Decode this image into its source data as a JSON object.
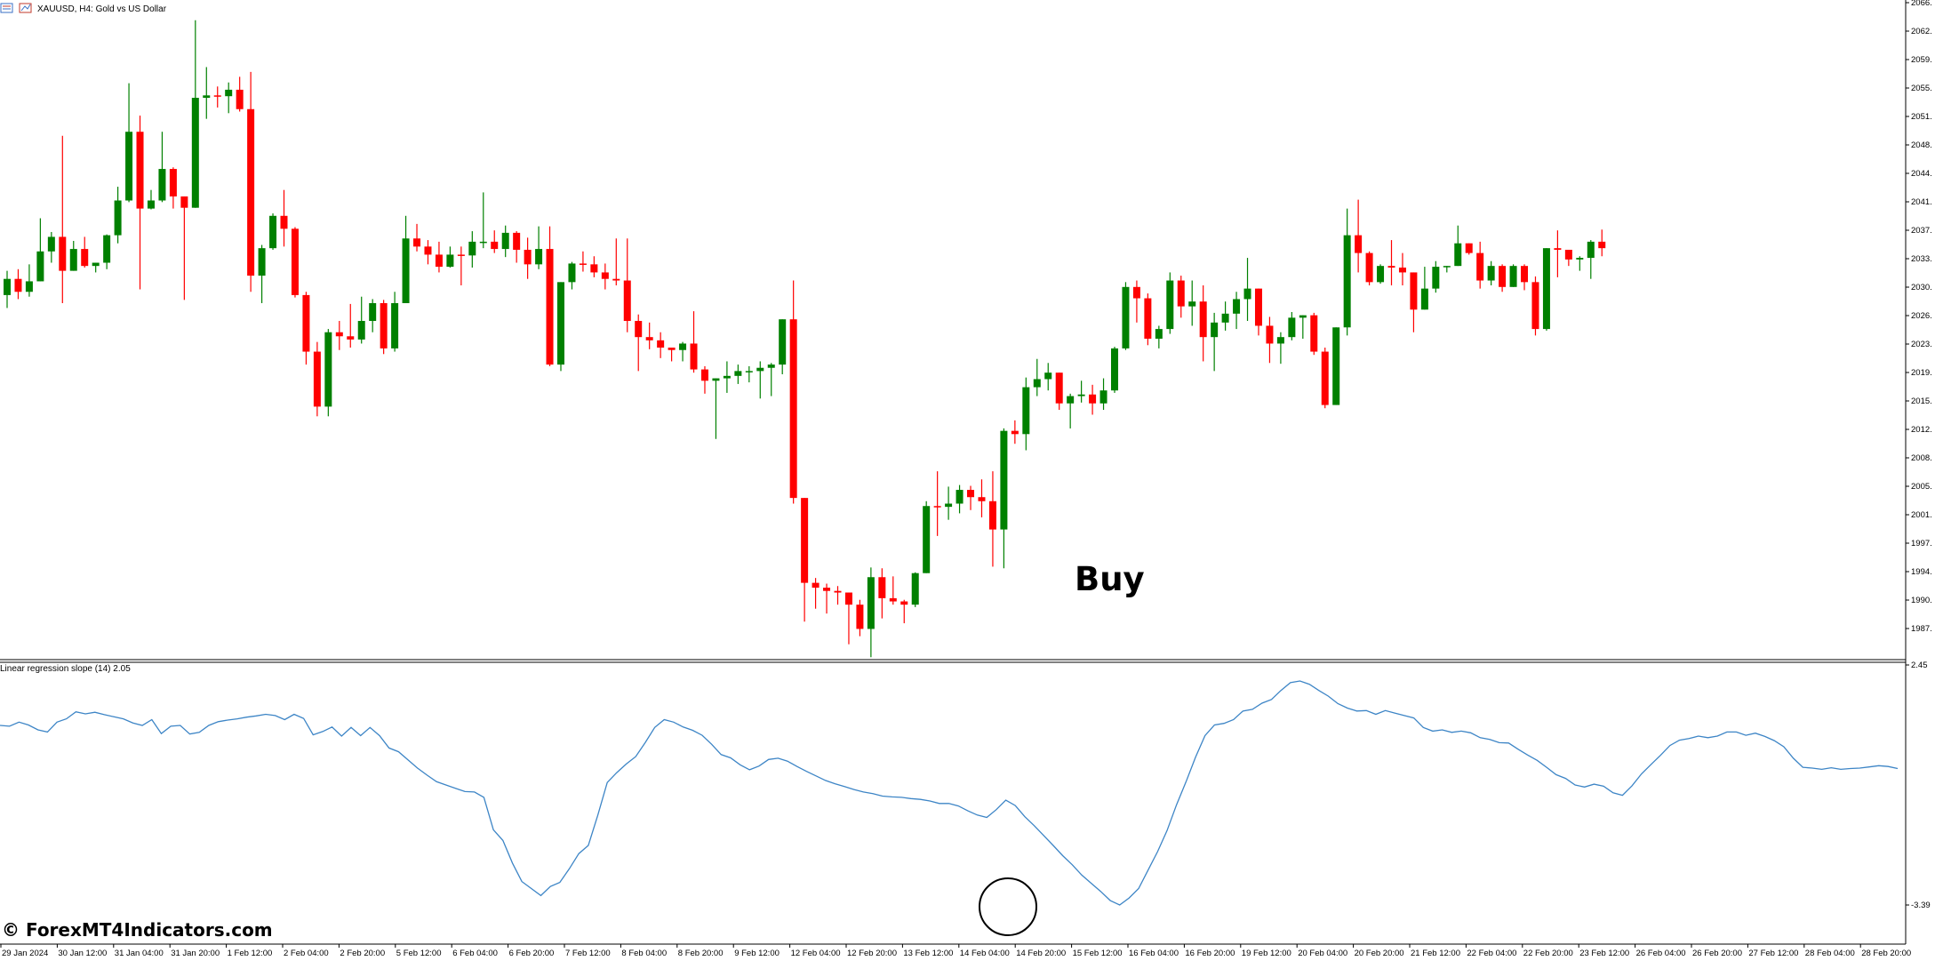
{
  "window": {
    "title": "XAUUSD, H4:  Gold vs US Dollar",
    "icons": [
      "chart-window-icon",
      "chart-settings-icon"
    ]
  },
  "indicator": {
    "title": "Linear regression slope (14) 2.05",
    "color": "#3d85c6"
  },
  "annotation": {
    "label": "Buy",
    "highlight": "circle on indicator minimum"
  },
  "watermark": "© ForexMT4Indicators.com",
  "colors": {
    "bull": "#008000",
    "bear": "#ff0000",
    "axis": "#000000",
    "background": "#ffffff"
  },
  "chart_data": [
    {
      "type": "candlestick",
      "title": "XAUUSD, H4:  Gold vs US Dollar",
      "ylim": [
        1984.7,
        2066.3
      ],
      "y_ticks": [
        "2066.",
        "2062.",
        "2059.",
        "2055.",
        "2051.",
        "2048.",
        "2044.",
        "2041.",
        "2037.",
        "2033.",
        "2030.",
        "2026.",
        "2023.",
        "2019.",
        "2015.",
        "2012.",
        "2008.",
        "2005.",
        "2001.",
        "1997.",
        "1994.",
        "1990.",
        "1987."
      ],
      "x_ticks": [
        "29 Jan 2024",
        "30 Jan 12:00",
        "31 Jan 04:00",
        "31 Jan 20:00",
        "1 Feb 12:00",
        "2 Feb 04:00",
        "2 Feb 20:00",
        "5 Feb 12:00",
        "6 Feb 04:00",
        "6 Feb 20:00",
        "7 Feb 12:00",
        "8 Feb 04:00",
        "8 Feb 20:00",
        "9 Feb 12:00",
        "12 Feb 04:00",
        "12 Feb 20:00",
        "13 Feb 12:00",
        "14 Feb 04:00",
        "14 Feb 20:00",
        "15 Feb 12:00",
        "16 Feb 04:00",
        "16 Feb 20:00",
        "19 Feb 12:00",
        "20 Feb 04:00",
        "20 Feb 20:00",
        "21 Feb 12:00",
        "22 Feb 04:00",
        "22 Feb 20:00",
        "23 Feb 12:00",
        "26 Feb 04:00",
        "26 Feb 20:00",
        "27 Feb 12:00",
        "28 Feb 04:00",
        "28 Feb 20:00"
      ],
      "candles": [
        [
          2029.8,
          2031.8,
          2028.2,
          2032.8
        ],
        [
          2031.8,
          2030.2,
          2029.3,
          2033.0
        ],
        [
          2030.2,
          2031.5,
          2029.6,
          2033.6
        ],
        [
          2031.5,
          2035.2,
          2031.5,
          2039.3
        ],
        [
          2035.2,
          2037.0,
          2033.8,
          2037.6
        ],
        [
          2037.0,
          2032.8,
          2028.8,
          2049.5
        ],
        [
          2032.8,
          2035.5,
          2032.8,
          2036.5
        ],
        [
          2035.5,
          2033.4,
          2033.2,
          2037.0
        ],
        [
          2033.4,
          2033.8,
          2032.6,
          2033.8
        ],
        [
          2033.8,
          2037.2,
          2033.0,
          2037.3
        ],
        [
          2037.2,
          2041.5,
          2036.2,
          2043.2
        ],
        [
          2041.5,
          2050.0,
          2041.3,
          2056.0
        ],
        [
          2050.0,
          2040.5,
          2030.5,
          2052.0
        ],
        [
          2040.5,
          2041.5,
          2040.4,
          2042.8
        ],
        [
          2041.5,
          2045.4,
          2041.3,
          2050.0
        ],
        [
          2045.4,
          2042.0,
          2040.5,
          2045.6
        ],
        [
          2042.0,
          2040.6,
          2029.2,
          2042.0
        ],
        [
          2040.6,
          2054.2,
          2040.6,
          2063.8
        ],
        [
          2054.2,
          2054.5,
          2051.6,
          2058.0
        ],
        [
          2054.5,
          2054.4,
          2053.0,
          2055.6
        ],
        [
          2054.4,
          2055.2,
          2052.3,
          2056.1
        ],
        [
          2055.2,
          2052.8,
          2052.5,
          2056.8
        ],
        [
          2052.8,
          2032.2,
          2030.2,
          2057.4
        ],
        [
          2032.2,
          2035.6,
          2028.8,
          2036.0
        ],
        [
          2035.6,
          2039.6,
          2035.4,
          2039.9
        ],
        [
          2039.6,
          2038.0,
          2035.8,
          2042.8
        ],
        [
          2038.0,
          2029.8,
          2029.5,
          2038.2
        ],
        [
          2029.8,
          2022.8,
          2021.2,
          2030.2
        ],
        [
          2022.8,
          2016.0,
          2014.8,
          2024.0
        ],
        [
          2016.0,
          2025.2,
          2014.8,
          2025.6
        ],
        [
          2025.2,
          2024.7,
          2023.0,
          2026.6
        ],
        [
          2024.7,
          2024.3,
          2023.3,
          2028.7
        ],
        [
          2024.3,
          2026.6,
          2023.8,
          2029.6
        ],
        [
          2026.6,
          2028.8,
          2025.2,
          2029.3
        ],
        [
          2028.8,
          2023.2,
          2022.5,
          2029.2
        ],
        [
          2023.2,
          2028.8,
          2022.8,
          2030.2
        ],
        [
          2028.8,
          2036.8,
          2028.8,
          2039.6
        ],
        [
          2036.8,
          2035.8,
          2035.2,
          2038.6
        ],
        [
          2035.8,
          2034.8,
          2033.6,
          2036.6
        ],
        [
          2034.8,
          2033.3,
          2032.6,
          2036.4
        ],
        [
          2033.3,
          2034.8,
          2033.2,
          2035.8
        ],
        [
          2034.8,
          2034.7,
          2031.0,
          2035.8
        ],
        [
          2034.7,
          2036.4,
          2033.2,
          2037.7
        ],
        [
          2036.4,
          2036.4,
          2035.6,
          2042.5
        ],
        [
          2036.4,
          2035.5,
          2035.0,
          2037.8
        ],
        [
          2035.5,
          2037.5,
          2034.5,
          2038.4
        ],
        [
          2037.5,
          2035.4,
          2033.8,
          2037.7
        ],
        [
          2035.4,
          2033.6,
          2031.8,
          2036.9
        ],
        [
          2033.6,
          2035.5,
          2033.0,
          2038.3
        ],
        [
          2035.5,
          2021.2,
          2021.0,
          2038.3
        ],
        [
          2021.2,
          2031.4,
          2020.4,
          2031.4
        ],
        [
          2031.4,
          2033.7,
          2030.5,
          2033.9
        ],
        [
          2033.7,
          2033.6,
          2032.7,
          2035.2
        ],
        [
          2033.6,
          2032.6,
          2032.0,
          2034.6
        ],
        [
          2032.6,
          2031.8,
          2030.5,
          2033.7
        ],
        [
          2031.8,
          2031.6,
          2031.0,
          2036.8
        ],
        [
          2031.6,
          2026.6,
          2025.2,
          2036.8
        ],
        [
          2026.6,
          2024.6,
          2020.4,
          2027.4
        ],
        [
          2024.6,
          2024.2,
          2023.1,
          2026.4
        ],
        [
          2024.2,
          2023.3,
          2022.0,
          2025.2
        ],
        [
          2023.3,
          2023.0,
          2021.6,
          2023.3
        ],
        [
          2023.0,
          2023.8,
          2021.6,
          2024.0
        ],
        [
          2023.8,
          2020.6,
          2020.2,
          2027.8
        ],
        [
          2020.6,
          2019.2,
          2017.6,
          2021.0
        ],
        [
          2019.2,
          2019.5,
          2012.0,
          2019.5
        ],
        [
          2019.5,
          2019.8,
          2017.7,
          2021.6
        ],
        [
          2019.8,
          2020.4,
          2018.8,
          2021.2
        ],
        [
          2020.4,
          2020.4,
          2019.0,
          2021.0
        ],
        [
          2020.4,
          2020.8,
          2017.0,
          2021.6
        ],
        [
          2020.8,
          2021.2,
          2017.3,
          2021.4
        ],
        [
          2021.2,
          2026.8,
          2020.0,
          2026.8
        ],
        [
          2026.8,
          2004.7,
          2004.0,
          2031.6
        ],
        [
          2004.7,
          1994.2,
          1989.4,
          2004.7
        ],
        [
          1994.2,
          1993.6,
          1991.0,
          1994.8
        ],
        [
          1993.6,
          1993.2,
          1990.4,
          1994.1
        ],
        [
          1993.2,
          1993.0,
          1991.5,
          1993.8
        ],
        [
          1993.0,
          1991.5,
          1986.6,
          1993.0
        ],
        [
          1991.5,
          1988.5,
          1987.6,
          1992.1
        ],
        [
          1988.5,
          1994.9,
          1985.0,
          1996.1
        ],
        [
          1994.9,
          1992.3,
          1989.8,
          1996.0
        ],
        [
          1992.3,
          1991.9,
          1991.5,
          1995.0
        ],
        [
          1991.9,
          1991.5,
          1989.2,
          1992.1
        ],
        [
          1991.5,
          1995.4,
          1991.2,
          1995.5
        ],
        [
          1995.4,
          2003.7,
          1995.4,
          2004.3
        ],
        [
          2003.7,
          2003.6,
          2000.0,
          2008.0
        ],
        [
          2003.6,
          2004.0,
          2002.0,
          2006.1
        ],
        [
          2004.0,
          2005.7,
          2002.8,
          2006.3
        ],
        [
          2005.7,
          2004.8,
          2003.2,
          2006.2
        ],
        [
          2004.8,
          2004.3,
          2002.3,
          2007.0
        ],
        [
          2004.3,
          2000.8,
          1996.2,
          2008.0
        ],
        [
          2000.8,
          2013.0,
          1996.0,
          2013.3
        ],
        [
          2013.0,
          2012.6,
          2011.4,
          2014.3
        ],
        [
          2012.6,
          2018.4,
          2010.6,
          2019.6
        ],
        [
          2018.4,
          2019.4,
          2017.3,
          2021.9
        ],
        [
          2019.4,
          2020.2,
          2018.0,
          2021.4
        ],
        [
          2020.2,
          2016.4,
          2015.6,
          2020.2
        ],
        [
          2016.4,
          2017.3,
          2013.3,
          2017.6
        ],
        [
          2017.3,
          2017.5,
          2016.5,
          2019.2
        ],
        [
          2017.5,
          2016.4,
          2015.0,
          2018.7
        ],
        [
          2016.4,
          2018.0,
          2015.6,
          2019.5
        ],
        [
          2018.0,
          2023.2,
          2017.7,
          2023.4
        ],
        [
          2023.2,
          2030.8,
          2023.0,
          2031.4
        ],
        [
          2030.8,
          2029.4,
          2026.4,
          2031.6
        ],
        [
          2029.4,
          2024.4,
          2023.6,
          2030.0
        ],
        [
          2024.4,
          2025.6,
          2023.2,
          2026.0
        ],
        [
          2025.6,
          2031.6,
          2025.0,
          2032.6
        ],
        [
          2031.6,
          2028.4,
          2027.0,
          2032.2
        ],
        [
          2028.4,
          2029.0,
          2026.0,
          2031.6
        ],
        [
          2029.0,
          2024.6,
          2021.6,
          2031.0
        ],
        [
          2024.6,
          2026.4,
          2020.4,
          2027.6
        ],
        [
          2026.4,
          2027.5,
          2025.4,
          2029.0
        ],
        [
          2027.5,
          2029.3,
          2025.6,
          2030.2
        ],
        [
          2029.3,
          2030.6,
          2026.6,
          2034.4
        ],
        [
          2030.6,
          2026.0,
          2024.8,
          2030.6
        ],
        [
          2026.0,
          2023.8,
          2021.4,
          2027.1
        ],
        [
          2023.8,
          2024.6,
          2021.3,
          2025.2
        ],
        [
          2024.6,
          2027.0,
          2024.2,
          2027.7
        ],
        [
          2027.0,
          2027.3,
          2024.4,
          2027.3
        ],
        [
          2027.3,
          2022.8,
          2022.4,
          2027.6
        ],
        [
          2022.8,
          2016.2,
          2015.8,
          2023.3
        ],
        [
          2016.2,
          2025.8,
          2016.2,
          2025.8
        ],
        [
          2025.8,
          2037.2,
          2024.8,
          2040.5
        ],
        [
          2037.2,
          2035.0,
          2032.6,
          2041.6
        ],
        [
          2035.0,
          2031.4,
          2031.0,
          2035.2
        ],
        [
          2031.4,
          2033.4,
          2031.2,
          2033.6
        ],
        [
          2033.4,
          2033.2,
          2031.0,
          2036.6
        ],
        [
          2033.2,
          2032.6,
          2031.0,
          2035.0
        ],
        [
          2032.6,
          2028.0,
          2025.2,
          2032.6
        ],
        [
          2028.0,
          2030.6,
          2028.0,
          2033.3
        ],
        [
          2030.6,
          2033.3,
          2030.1,
          2034.0
        ],
        [
          2033.3,
          2033.4,
          2032.6,
          2033.4
        ],
        [
          2033.4,
          2036.2,
          2033.4,
          2038.4
        ],
        [
          2036.2,
          2035.0,
          2034.8,
          2036.2
        ],
        [
          2035.0,
          2031.6,
          2030.6,
          2036.4
        ],
        [
          2031.6,
          2033.4,
          2031.0,
          2034.0
        ],
        [
          2033.4,
          2030.8,
          2030.2,
          2033.6
        ],
        [
          2030.8,
          2033.4,
          2030.8,
          2033.6
        ],
        [
          2033.4,
          2031.4,
          2030.4,
          2033.6
        ],
        [
          2031.4,
          2025.6,
          2024.8,
          2032.1
        ],
        [
          2025.6,
          2035.6,
          2025.4,
          2035.6
        ],
        [
          2035.6,
          2035.4,
          2032.0,
          2037.8
        ],
        [
          2035.4,
          2034.2,
          2033.4,
          2034.8
        ],
        [
          2034.2,
          2034.4,
          2032.8,
          2034.6
        ],
        [
          2034.4,
          2036.4,
          2031.8,
          2036.6
        ],
        [
          2036.4,
          2035.6,
          2034.6,
          2037.9
        ]
      ]
    },
    {
      "type": "line",
      "title": "Linear regression slope (14) 2.05",
      "ylim": [
        -3.39,
        2.45
      ],
      "y_ticks": [
        "2.45",
        "-3.39"
      ],
      "series": [
        {
          "values": [
            0.98,
            0.96,
            1.06,
            0.99,
            0.87,
            0.82,
            1.06,
            1.14,
            1.31,
            1.26,
            1.3,
            1.24,
            1.19,
            1.14,
            1.04,
            0.98,
            1.12,
            0.78,
            0.96,
            0.98,
            0.77,
            0.81,
            0.98,
            1.07,
            1.11,
            1.14,
            1.18,
            1.21,
            1.25,
            1.22,
            1.12,
            1.25,
            1.15,
            0.75,
            0.83,
            0.94,
            0.72,
            0.93,
            0.73,
            0.93,
            0.73,
            0.43,
            0.34,
            0.14,
            -0.06,
            -0.23,
            -0.39,
            -0.47,
            -0.55,
            -0.63,
            -0.64,
            -0.77,
            -1.56,
            -1.82,
            -2.37,
            -2.82,
            -2.99,
            -3.16,
            -2.94,
            -2.84,
            -2.51,
            -2.14,
            -1.94,
            -1.21,
            -0.41,
            -0.17,
            0.04,
            0.22,
            0.56,
            0.93,
            1.12,
            1.06,
            0.94,
            0.86,
            0.74,
            0.52,
            0.27,
            0.19,
            0.02,
            -0.1,
            -0.01,
            0.15,
            0.18,
            0.11,
            -0.02,
            -0.14,
            -0.25,
            -0.36,
            -0.44,
            -0.51,
            -0.58,
            -0.64,
            -0.68,
            -0.74,
            -0.76,
            -0.77,
            -0.8,
            -0.82,
            -0.86,
            -0.92,
            -0.92,
            -0.98,
            -1.1,
            -1.2,
            -1.26,
            -1.07,
            -0.84,
            -0.97,
            -1.24,
            -1.46,
            -1.7,
            -1.94,
            -2.19,
            -2.41,
            -2.66,
            -2.86,
            -3.06,
            -3.28,
            -3.39,
            -3.22,
            -2.99,
            -2.54,
            -2.09,
            -1.58,
            -0.95,
            -0.39,
            0.21,
            0.73,
            0.99,
            1.03,
            1.12,
            1.33,
            1.37,
            1.52,
            1.61,
            1.83,
            2.02,
            2.06,
            1.98,
            1.83,
            1.69,
            1.51,
            1.4,
            1.33,
            1.34,
            1.25,
            1.34,
            1.28,
            1.22,
            1.16,
            0.93,
            0.84,
            0.87,
            0.81,
            0.84,
            0.8,
            0.68,
            0.64,
            0.56,
            0.55,
            0.4,
            0.26,
            0.13,
            -0.04,
            -0.22,
            -0.31,
            -0.47,
            -0.52,
            -0.45,
            -0.5,
            -0.66,
            -0.72,
            -0.49,
            -0.2,
            0.03,
            0.25,
            0.49,
            0.62,
            0.66,
            0.72,
            0.68,
            0.72,
            0.82,
            0.82,
            0.74,
            0.79,
            0.71,
            0.61,
            0.46,
            0.18,
            -0.04,
            -0.06,
            -0.09,
            -0.05,
            -0.09,
            -0.07,
            -0.06,
            -0.03,
            0.0,
            -0.02,
            -0.07
          ]
        }
      ]
    }
  ]
}
